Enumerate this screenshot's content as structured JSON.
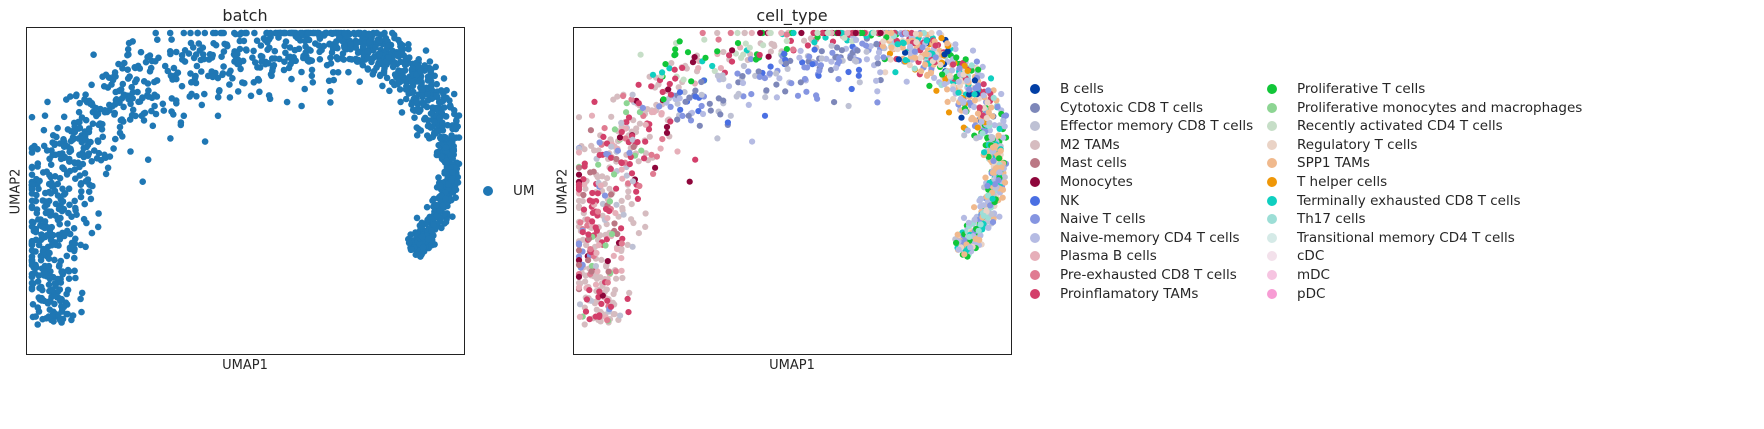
{
  "chart_data": [
    {
      "type": "scatter",
      "title": "batch",
      "xlabel": "UMAP1",
      "ylabel": "UMAP2",
      "grid": false,
      "legend_placement": "right",
      "series": [
        {
          "name": "UM",
          "color": "#1f77b4"
        }
      ],
      "shape": {
        "description_curve": "arched manifold",
        "points": [
          [
            -4.8,
            -3.4
          ],
          [
            -5.0,
            -0.5
          ],
          [
            -3.5,
            2.2
          ],
          [
            0.0,
            3.6
          ],
          [
            3.0,
            3.9
          ],
          [
            4.8,
            2.8
          ],
          [
            5.6,
            0.5
          ],
          [
            4.7,
            -1.6
          ]
        ]
      }
    },
    {
      "type": "scatter",
      "title": "cell_type",
      "xlabel": "UMAP1",
      "ylabel": "UMAP2",
      "grid": false,
      "legend_placement": "right",
      "series": [
        {
          "name": "B cells",
          "color": "#023fa5"
        },
        {
          "name": "Cytotoxic CD8 T cells",
          "color": "#7d87b9"
        },
        {
          "name": "Effector memory CD8 T cells",
          "color": "#bec1d4"
        },
        {
          "name": "M2 TAMs",
          "color": "#d6bcc0"
        },
        {
          "name": "Mast cells",
          "color": "#bb7784"
        },
        {
          "name": "Monocytes",
          "color": "#8e063b"
        },
        {
          "name": "NK",
          "color": "#4a6fe3"
        },
        {
          "name": "Naive T cells",
          "color": "#8595e1"
        },
        {
          "name": "Naive-memory CD4 T cells",
          "color": "#b5bbe3"
        },
        {
          "name": "Plasma B cells",
          "color": "#e6afb9"
        },
        {
          "name": "Pre-exhausted CD8 T cells",
          "color": "#e07b91"
        },
        {
          "name": "Proinflamatory TAMs",
          "color": "#d33f6a"
        },
        {
          "name": "Proliferative T cells",
          "color": "#11c638"
        },
        {
          "name": "Proliferative monocytes and macrophages",
          "color": "#8dd593"
        },
        {
          "name": "Recently activated CD4 T cells",
          "color": "#c6dec7"
        },
        {
          "name": "Regulatory T cells",
          "color": "#ead3c6"
        },
        {
          "name": "SPP1 TAMs",
          "color": "#f0b98d"
        },
        {
          "name": "T helper cells",
          "color": "#ef9708"
        },
        {
          "name": "Terminally exhausted CD8 T cells",
          "color": "#0fcfc0"
        },
        {
          "name": "Th17 cells",
          "color": "#9cded6"
        },
        {
          "name": "Transitional memory CD4 T cells",
          "color": "#d5eae7"
        },
        {
          "name": "cDC",
          "color": "#f3e1eb"
        },
        {
          "name": "mDC",
          "color": "#f6c4e1"
        },
        {
          "name": "pDC",
          "color": "#f79cd4"
        }
      ]
    }
  ]
}
